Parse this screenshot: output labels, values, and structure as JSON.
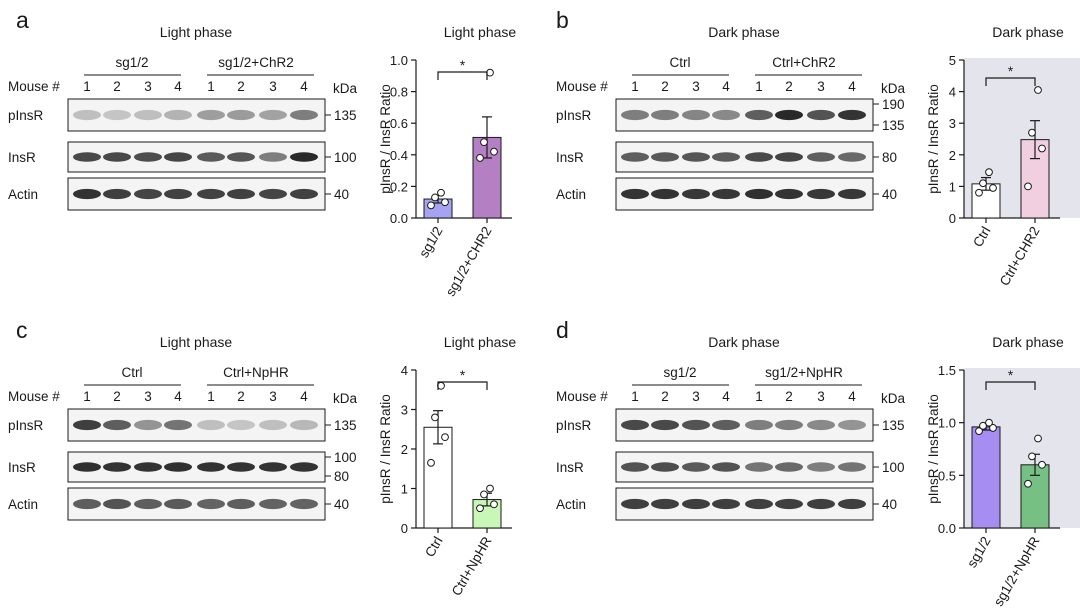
{
  "panels": [
    {
      "letter": "a",
      "blot_title": "Light phase",
      "mouse_label": "Mouse #",
      "kda_label": "kDa",
      "groups": [
        "sg1/2",
        "sg1/2+ChR2"
      ],
      "lanes": [
        "1",
        "2",
        "3",
        "4",
        "1",
        "2",
        "3",
        "4"
      ],
      "blot_rows": [
        {
          "name": "pInsR",
          "markers": [
            "135"
          ],
          "intensities": [
            0.25,
            0.22,
            0.25,
            0.3,
            0.4,
            0.42,
            0.38,
            0.55
          ]
        },
        {
          "name": "InsR",
          "markers": [
            "100"
          ],
          "intensities": [
            0.8,
            0.8,
            0.78,
            0.82,
            0.72,
            0.74,
            0.55,
            0.95
          ]
        },
        {
          "name": "Actin",
          "markers": [
            "40"
          ],
          "intensities": [
            0.9,
            0.85,
            0.82,
            0.84,
            0.83,
            0.84,
            0.82,
            0.84
          ]
        }
      ]
    },
    {
      "letter": "b",
      "blot_title": "Dark phase",
      "mouse_label": "Mouse #",
      "kda_label": "kDa",
      "groups": [
        "Ctrl",
        "Ctrl+ChR2"
      ],
      "lanes": [
        "1",
        "2",
        "3",
        "4",
        "1",
        "2",
        "3",
        "4"
      ],
      "blot_rows": [
        {
          "name": "pInsR",
          "markers": [
            "190",
            "135"
          ],
          "intensities": [
            0.55,
            0.55,
            0.52,
            0.5,
            0.7,
            0.95,
            0.75,
            0.9
          ]
        },
        {
          "name": "InsR",
          "markers": [
            "80"
          ],
          "intensities": [
            0.7,
            0.72,
            0.74,
            0.72,
            0.8,
            0.82,
            0.7,
            0.65
          ]
        },
        {
          "name": "Actin",
          "markers": [
            "40"
          ],
          "intensities": [
            0.9,
            0.9,
            0.88,
            0.88,
            0.92,
            0.9,
            0.88,
            0.88
          ]
        }
      ]
    },
    {
      "letter": "c",
      "blot_title": "Light phase",
      "mouse_label": "Mouse #",
      "kda_label": "kDa",
      "groups": [
        "Ctrl",
        "Ctrl+NpHR"
      ],
      "lanes": [
        "1",
        "2",
        "3",
        "4",
        "1",
        "2",
        "3",
        "4"
      ],
      "blot_rows": [
        {
          "name": "pInsR",
          "markers": [
            "135"
          ],
          "intensities": [
            0.85,
            0.7,
            0.45,
            0.6,
            0.25,
            0.22,
            0.25,
            0.28
          ]
        },
        {
          "name": "InsR",
          "markers": [
            "100",
            "80"
          ],
          "intensities": [
            0.92,
            0.9,
            0.9,
            0.92,
            0.9,
            0.9,
            0.9,
            0.9
          ]
        },
        {
          "name": "Actin",
          "markers": [
            "40"
          ],
          "intensities": [
            0.7,
            0.75,
            0.7,
            0.72,
            0.68,
            0.7,
            0.68,
            0.68
          ]
        }
      ]
    },
    {
      "letter": "d",
      "blot_title": "Dark phase",
      "mouse_label": "Mouse #",
      "kda_label": "kDa",
      "groups": [
        "sg1/2",
        "sg1/2+NpHR"
      ],
      "lanes": [
        "1",
        "2",
        "3",
        "4",
        "1",
        "2",
        "3",
        "4"
      ],
      "blot_rows": [
        {
          "name": "pInsR",
          "markers": [
            "135"
          ],
          "intensities": [
            0.8,
            0.8,
            0.75,
            0.7,
            0.55,
            0.55,
            0.5,
            0.45
          ]
        },
        {
          "name": "InsR",
          "markers": [
            "100"
          ],
          "intensities": [
            0.75,
            0.78,
            0.72,
            0.75,
            0.6,
            0.65,
            0.55,
            0.6
          ]
        },
        {
          "name": "Actin",
          "markers": [
            "40"
          ],
          "intensities": [
            0.85,
            0.85,
            0.85,
            0.85,
            0.85,
            0.85,
            0.85,
            0.85
          ]
        }
      ]
    }
  ],
  "chart_data": [
    {
      "panel": "a",
      "type": "bar",
      "title": "Light phase",
      "ylabel": "pInsR / InsR Ratio",
      "ylim": [
        0,
        1.0
      ],
      "yticks": [
        "0.0",
        "0.2",
        "0.4",
        "0.6",
        "0.8",
        "1.0"
      ],
      "categories": [
        "sg1/2",
        "sg1/2+CHR2"
      ],
      "values": [
        0.12,
        0.51
      ],
      "sem": [
        0.025,
        0.13
      ],
      "points": [
        [
          0.08,
          0.1,
          0.13,
          0.16
        ],
        [
          0.38,
          0.42,
          0.48,
          0.92
        ]
      ],
      "bar_colors": [
        "#a6a3f3",
        "#b47fc3"
      ],
      "significance": "*",
      "shaded": false
    },
    {
      "panel": "b",
      "type": "bar",
      "title": "Dark phase",
      "ylabel": "pInsR / InsR Ratio",
      "ylim": [
        0,
        5
      ],
      "yticks": [
        "0",
        "1",
        "2",
        "3",
        "4",
        "5"
      ],
      "categories": [
        "Ctrl",
        "Ctrl+CHR2"
      ],
      "values": [
        1.08,
        2.48
      ],
      "sem": [
        0.2,
        0.6
      ],
      "points": [
        [
          0.8,
          0.95,
          1.1,
          1.45
        ],
        [
          1.0,
          2.2,
          2.7,
          4.05
        ]
      ],
      "bar_colors": [
        "#ffffff",
        "#f1cfe0"
      ],
      "significance": "*",
      "shaded": true
    },
    {
      "panel": "c",
      "type": "bar",
      "title": "Light phase",
      "ylabel": "pInsR / InsR Ratio",
      "ylim": [
        0,
        4
      ],
      "yticks": [
        "0",
        "1",
        "2",
        "3",
        "4"
      ],
      "categories": [
        "Ctrl",
        "Ctrl+NpHR"
      ],
      "values": [
        2.55,
        0.72
      ],
      "sem": [
        0.42,
        0.16
      ],
      "points": [
        [
          1.65,
          2.3,
          2.8,
          3.6
        ],
        [
          0.5,
          0.6,
          0.85,
          1.0
        ]
      ],
      "bar_colors": [
        "#ffffff",
        "#c9f7b7"
      ],
      "significance": "*",
      "shaded": false
    },
    {
      "panel": "d",
      "type": "bar",
      "title": "Dark phase",
      "ylabel": "pInsR / InsR Ratio",
      "ylim": [
        0,
        1.5
      ],
      "yticks": [
        "0.0",
        "0.5",
        "1.0",
        "1.5"
      ],
      "categories": [
        "sg1/2",
        "sg1/2+NpHR"
      ],
      "values": [
        0.96,
        0.6
      ],
      "sem": [
        0.03,
        0.1
      ],
      "points": [
        [
          0.92,
          0.95,
          0.97,
          1.0
        ],
        [
          0.42,
          0.6,
          0.68,
          0.85
        ]
      ],
      "bar_colors": [
        "#a58df2",
        "#76c084"
      ],
      "significance": "*",
      "shaded": true
    }
  ]
}
